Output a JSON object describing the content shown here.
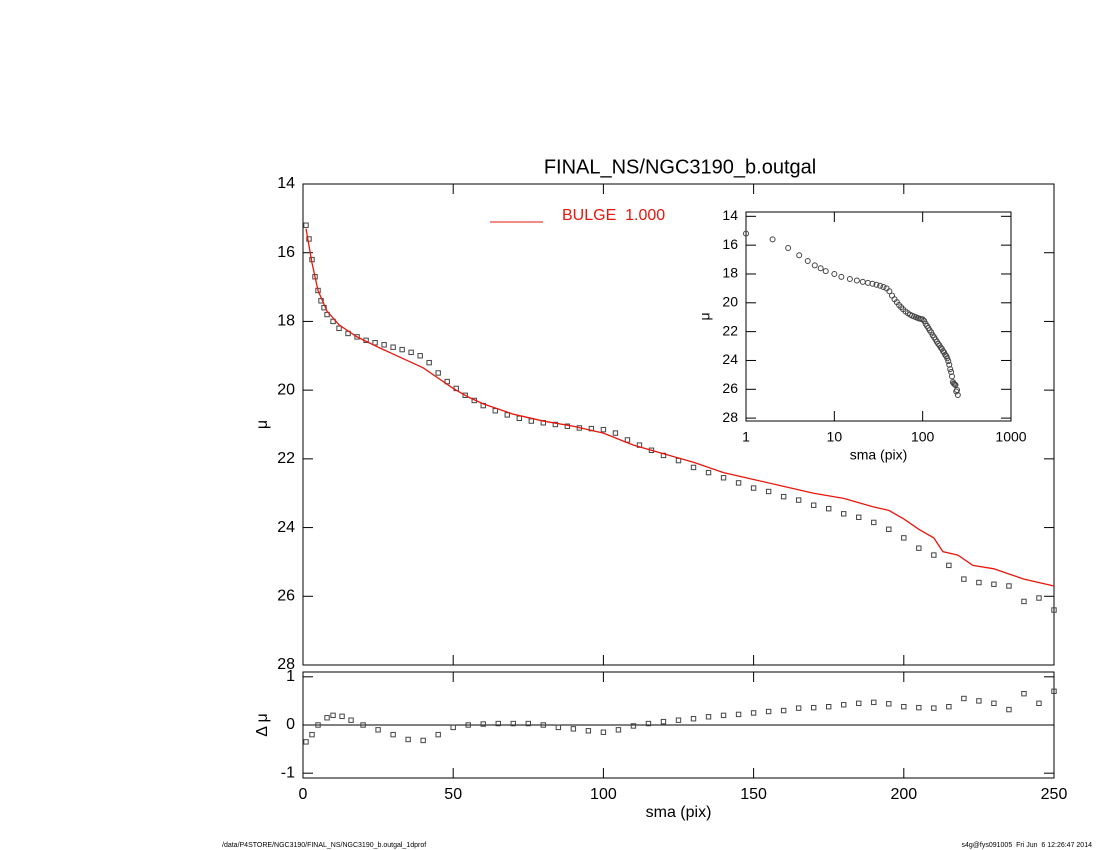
{
  "title": "FINAL_NS/NGC3190_b.outgal",
  "footer_left": "/data/P4STORE/NGC3190/FINAL_NS/NGC3190_b.outgal_1dprof",
  "footer_right": "s4g@fys091005  Fri Jun  6 12:26:47 2014",
  "chart_data": [
    {
      "type": "scatter",
      "ylabel": "μ",
      "xlim": [
        0,
        250
      ],
      "xticks": [
        0,
        50,
        100,
        150,
        200,
        250
      ],
      "ylim": [
        28,
        14
      ],
      "yticks": [
        14,
        16,
        18,
        20,
        22,
        24,
        26,
        28
      ],
      "legend": "top",
      "series": [
        {
          "marker": "square",
          "color": "#444444",
          "x": [
            1,
            2,
            3,
            4,
            5,
            6,
            7,
            8,
            10,
            12,
            15,
            18,
            21,
            24,
            27,
            30,
            33,
            36,
            39,
            42,
            45,
            48,
            51,
            54,
            57,
            60,
            64,
            68,
            72,
            76,
            80,
            84,
            88,
            92,
            96,
            100,
            104,
            108,
            112,
            116,
            120,
            125,
            130,
            135,
            140,
            145,
            150,
            155,
            160,
            165,
            170,
            175,
            180,
            185,
            190,
            195,
            200,
            205,
            210,
            215,
            220,
            225,
            230,
            235,
            240,
            245,
            250
          ],
          "values": [
            15.2,
            15.6,
            16.2,
            16.7,
            17.1,
            17.4,
            17.6,
            17.8,
            18.0,
            18.2,
            18.35,
            18.45,
            18.55,
            18.62,
            18.68,
            18.75,
            18.82,
            18.9,
            19.0,
            19.2,
            19.5,
            19.75,
            19.95,
            20.15,
            20.3,
            20.45,
            20.6,
            20.72,
            20.82,
            20.9,
            20.95,
            21.0,
            21.05,
            21.1,
            21.12,
            21.15,
            21.25,
            21.45,
            21.6,
            21.75,
            21.9,
            22.05,
            22.25,
            22.4,
            22.55,
            22.7,
            22.85,
            22.95,
            23.1,
            23.2,
            23.35,
            23.45,
            23.6,
            23.7,
            23.85,
            24.05,
            24.3,
            24.6,
            24.8,
            25.1,
            25.5,
            25.6,
            25.65,
            25.7,
            26.15,
            26.05,
            26.4
          ]
        },
        {
          "name": "BULGE  1.000",
          "marker": "line",
          "color": "#e8160c",
          "x": [
            1,
            3,
            5,
            8,
            12,
            18,
            25,
            30,
            35,
            40,
            45,
            50,
            55,
            60,
            70,
            80,
            90,
            100,
            110,
            120,
            130,
            140,
            150,
            160,
            170,
            180,
            190,
            195,
            200,
            205,
            210,
            213,
            218,
            223,
            230,
            235,
            240,
            250
          ],
          "values": [
            15.3,
            16.3,
            17.1,
            17.7,
            18.1,
            18.45,
            18.75,
            18.95,
            19.15,
            19.35,
            19.65,
            19.95,
            20.2,
            20.4,
            20.7,
            20.9,
            21.05,
            21.25,
            21.6,
            21.85,
            22.1,
            22.4,
            22.6,
            22.8,
            23.0,
            23.15,
            23.4,
            23.5,
            23.75,
            24.05,
            24.3,
            24.7,
            24.8,
            25.1,
            25.2,
            25.35,
            25.5,
            25.7
          ]
        }
      ]
    },
    {
      "type": "scatter",
      "xlabel": "sma (pix)",
      "ylabel": "Δ μ",
      "xlim": [
        0,
        250
      ],
      "xticks": [
        0,
        50,
        100,
        150,
        200,
        250
      ],
      "ylim": [
        -1.1,
        1.1
      ],
      "yticks": [
        -1,
        0,
        1
      ],
      "series": [
        {
          "marker": "square",
          "color": "#444444",
          "x": [
            1,
            3,
            5,
            8,
            10,
            13,
            16,
            20,
            25,
            30,
            35,
            40,
            45,
            50,
            55,
            60,
            65,
            70,
            75,
            80,
            85,
            90,
            95,
            100,
            105,
            110,
            115,
            120,
            125,
            130,
            135,
            140,
            145,
            150,
            155,
            160,
            165,
            170,
            175,
            180,
            185,
            190,
            195,
            200,
            205,
            210,
            215,
            220,
            225,
            230,
            235,
            240,
            245,
            250
          ],
          "values": [
            -0.35,
            -0.2,
            0,
            0.15,
            0.2,
            0.18,
            0.1,
            0.0,
            -0.1,
            -0.2,
            -0.3,
            -0.32,
            -0.2,
            -0.05,
            0.0,
            0.02,
            0.03,
            0.03,
            0.03,
            0.0,
            -0.05,
            -0.08,
            -0.12,
            -0.15,
            -0.1,
            -0.02,
            0.03,
            0.07,
            0.1,
            0.13,
            0.17,
            0.2,
            0.22,
            0.25,
            0.28,
            0.3,
            0.35,
            0.36,
            0.38,
            0.42,
            0.45,
            0.47,
            0.44,
            0.38,
            0.36,
            0.35,
            0.38,
            0.55,
            0.5,
            0.45,
            0.32,
            0.65,
            0.45,
            0.7
          ]
        }
      ]
    },
    {
      "type": "scatter",
      "xlabel": "sma (pix)",
      "ylabel": "μ",
      "xlog": true,
      "xlim": [
        1,
        1000
      ],
      "xticks": [
        1,
        10,
        100,
        1000
      ],
      "ylim": [
        28.2,
        13.7
      ],
      "yticks": [
        14,
        16,
        18,
        20,
        22,
        24,
        26,
        28
      ],
      "series": [
        {
          "marker": "circle",
          "color": "#444444",
          "x": [
            1,
            2,
            3,
            4,
            5,
            6,
            7,
            8,
            10,
            12,
            15,
            18,
            21,
            24,
            27,
            30,
            33,
            36,
            39,
            42,
            45,
            48,
            51,
            54,
            57,
            60,
            64,
            68,
            72,
            76,
            80,
            84,
            88,
            92,
            96,
            100,
            104,
            108,
            112,
            116,
            120,
            125,
            130,
            135,
            140,
            145,
            150,
            155,
            160,
            165,
            170,
            175,
            180,
            185,
            190,
            195,
            200,
            205,
            210,
            215,
            220,
            225,
            230,
            235,
            240,
            245,
            250
          ],
          "values": [
            15.2,
            15.6,
            16.2,
            16.7,
            17.1,
            17.4,
            17.6,
            17.8,
            18.0,
            18.2,
            18.35,
            18.45,
            18.55,
            18.62,
            18.68,
            18.75,
            18.82,
            18.9,
            19.0,
            19.2,
            19.5,
            19.75,
            19.95,
            20.15,
            20.3,
            20.45,
            20.6,
            20.72,
            20.82,
            20.9,
            20.95,
            21.0,
            21.05,
            21.1,
            21.12,
            21.15,
            21.25,
            21.45,
            21.6,
            21.75,
            21.9,
            22.05,
            22.25,
            22.4,
            22.55,
            22.7,
            22.85,
            22.95,
            23.1,
            23.2,
            23.35,
            23.45,
            23.6,
            23.7,
            23.85,
            24.05,
            24.3,
            24.6,
            24.8,
            25.1,
            25.5,
            25.6,
            25.65,
            25.7,
            26.15,
            26.05,
            26.4
          ]
        }
      ]
    }
  ]
}
